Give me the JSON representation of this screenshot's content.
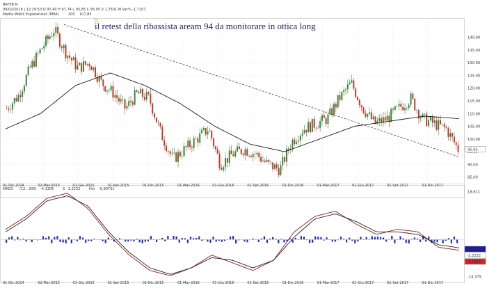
{
  "header": {
    "symbol": "BAYER N",
    "quote": "09/02/2018 | 12:29:53 O 97,40 H 97,74 L 95,85 C 95,95 V 1,7501 M Var% -1,7107",
    "ma_legend": "Media Mobili Esponenziali (EMA)",
    "ma_period": "200",
    "ma_value": "107,85"
  },
  "macd_header": {
    "name": "MACD",
    "params": "(12 , 200)",
    "macd_value": "-4,1305",
    "signal_label": "S",
    "signal_value": "-3,2232",
    "hist_label": "Hst",
    "hist_value": "-0,90731"
  },
  "annotation": "il retest della ribassista aream 94 da monitorare in ottica long",
  "colors": {
    "up_candle": "#2e8b3a",
    "down_candle": "#c0392b",
    "ema": "#1a1a1a",
    "trendline": "#444444",
    "macd_line": "#8b1a1a",
    "signal_line": "#222222",
    "histogram": "#1f2fbf",
    "axis_text": "#d4a017",
    "price_tag_bg": "#ffffff",
    "macd_tag_bg": "#e02020",
    "hist_tag_bg": "#1a1aa8"
  },
  "chart_data": [
    {
      "type": "candlestick",
      "title": "BAYER N",
      "y_ticks": [
        "140,00",
        "135,00",
        "130,00",
        "125,00",
        "120,00",
        "115,00",
        "110,00",
        "105,00",
        "100,00",
        "95,00",
        "90,00",
        "85,00"
      ],
      "y_tick_values": [
        140,
        135,
        130,
        125,
        120,
        115,
        110,
        105,
        100,
        95,
        90,
        85
      ],
      "ylim": [
        83,
        147
      ],
      "x_ticks": [
        "01-Dic-2014",
        "02-Mar-2015",
        "01-Giu-2015",
        "01-Set-2015",
        "01-Dic-2015",
        "01-Mar-2016",
        "01-Giu-2016",
        "01-Set-2016",
        "01-Dic-2016",
        "01-Mar-2017",
        "01-Giu-2017",
        "01-Set-2017",
        "01-Dic-2017"
      ],
      "close_anchors": [
        [
          "01-Dic-2014",
          112
        ],
        [
          "Gen-2015",
          117
        ],
        [
          "Feb-2015",
          128
        ],
        [
          "02-Mar-2015",
          136
        ],
        [
          "Apr-2015",
          143
        ],
        [
          "Mag-2015",
          134
        ],
        [
          "01-Giu-2015",
          128
        ],
        [
          "Lug-2015",
          130
        ],
        [
          "Ago-2015",
          122
        ],
        [
          "01-Set-2015",
          118
        ],
        [
          "Ott-2015",
          112
        ],
        [
          "Nov-2015",
          118
        ],
        [
          "01-Dic-2015",
          116
        ],
        [
          "Gen-2016",
          102
        ],
        [
          "Feb-2016",
          92
        ],
        [
          "01-Mar-2016",
          96
        ],
        [
          "Apr-2016",
          100
        ],
        [
          "Mag-2016",
          104
        ],
        [
          "01-Giu-2016",
          90
        ],
        [
          "Lug-2016",
          94
        ],
        [
          "Ago-2016",
          96
        ],
        [
          "01-Set-2016",
          94
        ],
        [
          "Ott-2016",
          90
        ],
        [
          "Nov-2016",
          88
        ],
        [
          "01-Dic-2016",
          99
        ],
        [
          "Gen-2017",
          104
        ],
        [
          "Feb-2017",
          106
        ],
        [
          "01-Mar-2017",
          108
        ],
        [
          "Apr-2017",
          116
        ],
        [
          "Mag-2017",
          122
        ],
        [
          "01-Giu-2017",
          112
        ],
        [
          "Lug-2017",
          106
        ],
        [
          "Ago-2017",
          108
        ],
        [
          "01-Set-2017",
          112
        ],
        [
          "Ott-2017",
          116
        ],
        [
          "Nov-2017",
          108
        ],
        [
          "01-Dic-2017",
          106
        ],
        [
          "Gen-2018",
          104
        ],
        [
          "09-Feb-2018",
          95.95
        ]
      ],
      "ema200_anchors": [
        [
          "01-Dic-2014",
          104
        ],
        [
          "02-Mar-2015",
          110
        ],
        [
          "01-Giu-2015",
          121
        ],
        [
          "01-Set-2015",
          126
        ],
        [
          "01-Dic-2015",
          121
        ],
        [
          "01-Mar-2016",
          114
        ],
        [
          "01-Giu-2016",
          105
        ],
        [
          "01-Set-2016",
          98
        ],
        [
          "01-Dic-2016",
          95
        ],
        [
          "01-Mar-2017",
          100
        ],
        [
          "01-Giu-2017",
          105
        ],
        [
          "01-Set-2017",
          107
        ],
        [
          "01-Dic-2017",
          109
        ],
        [
          "09-Feb-2018",
          108
        ]
      ],
      "trendline": [
        [
          "Apr-2015",
          145
        ],
        [
          "09-Feb-2018",
          93
        ]
      ],
      "last_price_label": "95,95",
      "ema_label": "107,85"
    },
    {
      "type": "line",
      "title": "MACD (12 , 200)",
      "y_ticks": [
        "18,611",
        "-14,375"
      ],
      "ylim": [
        -15,
        19
      ],
      "x_ticks": [
        "01-Dic-2014",
        "02-Mar-2015",
        "01-Giu-2015",
        "01-Set-2015",
        "01-Dic-2015",
        "01-Mar-2016",
        "01-Giu-2016",
        "01-Set-2016",
        "01-Dic-2016",
        "01-Mar-2017",
        "01-Giu-2017",
        "01-Set-2017",
        "01-Dic-2017"
      ],
      "series": [
        {
          "name": "MACD",
          "anchors": [
            4,
            9,
            16,
            18,
            12,
            2,
            -6,
            -12,
            -14,
            -11,
            -6,
            -9,
            -12,
            -8,
            3,
            9,
            11,
            6,
            2,
            4,
            3,
            -3,
            -4.1
          ]
        },
        {
          "name": "S",
          "anchors": [
            3,
            8,
            15,
            17,
            13,
            3,
            -5,
            -11,
            -13.5,
            -11,
            -7,
            -8,
            -11,
            -8,
            1,
            8,
            10,
            7,
            3,
            3,
            2,
            -2,
            -3.2
          ]
        }
      ],
      "histogram_range": [
        -1.5,
        1.5
      ],
      "labels": [
        "-0,90731",
        "-3,2232",
        "-4,1305"
      ]
    }
  ]
}
